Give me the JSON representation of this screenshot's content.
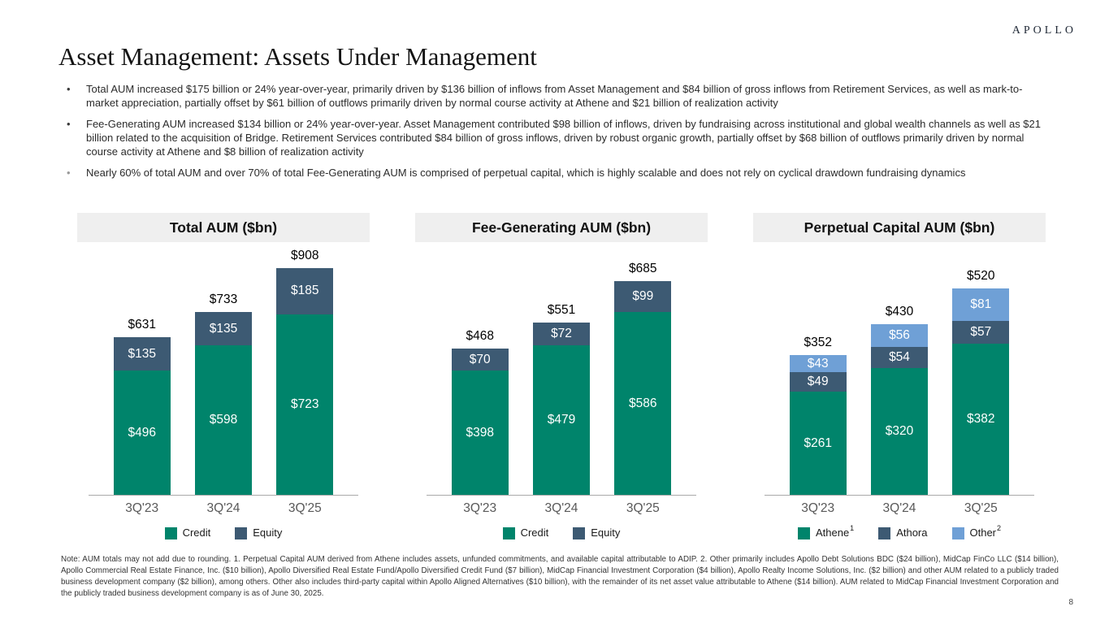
{
  "brand": {
    "logo": "APOLLO"
  },
  "page": {
    "title": "Asset Management: Assets Under Management",
    "page_number": "8"
  },
  "bullets": [
    {
      "text": "Total AUM increased $175 billion or 24% year-over-year, primarily driven by $136 billion of inflows from Asset Management and $84 billion of gross inflows from Retirement Services, as well as mark-to-market appreciation, partially offset by $61 billion of outflows primarily driven by normal course activity at Athene and $21 billion of realization activity"
    },
    {
      "text": "Fee-Generating AUM increased $134 billion or 24% year-over-year. Asset Management contributed $98 billion of inflows, driven by fundraising across institutional and global wealth channels as well as $21 billion related to the acquisition of Bridge. Retirement Services contributed $84 billion of gross inflows, driven by robust organic growth, partially offset by $68 billion of outflows primarily driven by normal course activity at Athene and $8 billion of realization activity"
    },
    {
      "text": "Nearly 60% of total AUM and over 70% of total Fee-Generating AUM is comprised of perpetual capital, which is highly scalable and does not rely on cyclical drawdown fundraising dynamics"
    }
  ],
  "colors": {
    "credit_green": "#00846B",
    "equity_slate": "#3D5A73",
    "other_blue": "#6FA0D6",
    "header_bg": "#EFEFEF",
    "axis_gray": "#595959"
  },
  "chart_data": [
    {
      "type": "bar",
      "stacked": true,
      "title": "Total AUM ($bn)",
      "value_prefix": "$",
      "categories": [
        "3Q'23",
        "3Q'24",
        "3Q'25"
      ],
      "series": [
        {
          "name": "Credit",
          "sup": "",
          "color": "#00846B",
          "values": [
            496,
            598,
            723
          ]
        },
        {
          "name": "Equity",
          "sup": "",
          "color": "#3D5A73",
          "values": [
            135,
            135,
            185
          ]
        }
      ],
      "totals": [
        631,
        733,
        908
      ],
      "ylim": [
        0,
        975
      ],
      "grid": false,
      "legend_position": "bottom"
    },
    {
      "type": "bar",
      "stacked": true,
      "title": "Fee-Generating AUM ($bn)",
      "value_prefix": "$",
      "categories": [
        "3Q'23",
        "3Q'24",
        "3Q'25"
      ],
      "series": [
        {
          "name": "Credit",
          "sup": "",
          "color": "#00846B",
          "values": [
            398,
            479,
            586
          ]
        },
        {
          "name": "Equity",
          "sup": "",
          "color": "#3D5A73",
          "values": [
            70,
            72,
            99
          ]
        }
      ],
      "totals": [
        468,
        551,
        685
      ],
      "ylim": [
        0,
        780
      ],
      "grid": false,
      "legend_position": "bottom"
    },
    {
      "type": "bar",
      "stacked": true,
      "title": "Perpetual Capital AUM ($bn)",
      "value_prefix": "$",
      "categories": [
        "3Q'23",
        "3Q'24",
        "3Q'25"
      ],
      "series": [
        {
          "name": "Athene",
          "sup": "1",
          "color": "#00846B",
          "values": [
            261,
            320,
            382
          ]
        },
        {
          "name": "Athora",
          "sup": "",
          "color": "#3D5A73",
          "values": [
            49,
            54,
            57
          ]
        },
        {
          "name": "Other",
          "sup": "2",
          "color": "#6FA0D6",
          "values": [
            43,
            56,
            81
          ]
        }
      ],
      "totals": [
        352,
        430,
        520
      ],
      "ylim": [
        0,
        615
      ],
      "grid": false,
      "legend_position": "bottom"
    }
  ],
  "footnote": "Note: AUM totals may not add due to rounding. 1. Perpetual Capital AUM derived from Athene includes assets, unfunded commitments, and available capital attributable to ADIP. 2. Other primarily includes Apollo Debt Solutions BDC ($24 billion), MidCap FinCo LLC ($14 billion), Apollo Commercial Real Estate Finance, Inc. ($10 billion), Apollo Diversified Real Estate Fund/Apollo Diversified Credit Fund ($7 billion), MidCap Financial Investment Corporation ($4 billion), Apollo Realty Income Solutions, Inc. ($2 billion) and other AUM related to a publicly traded business development company ($2 billion), among others. Other also includes third-party capital within Apollo Aligned Alternatives ($10 billion), with the remainder of its net asset value attributable to Athene ($14 billion). AUM related to MidCap Financial Investment Corporation and the publicly traded business development company is as of June 30, 2025."
}
